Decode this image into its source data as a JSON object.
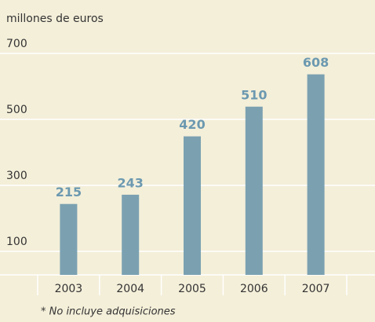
{
  "chart_data": {
    "type": "bar",
    "ylabel": "millones de euros",
    "categories": [
      "2003",
      "2004",
      "2005",
      "2006",
      "2007"
    ],
    "values": [
      215,
      243,
      420,
      510,
      608
    ],
    "color": "#7ba1b1",
    "label_color": "#6c99b0",
    "ylim": [
      0,
      700
    ],
    "yticks": [
      100,
      300,
      500,
      700
    ],
    "grid": true,
    "note": "* No incluye adquisiciones"
  }
}
